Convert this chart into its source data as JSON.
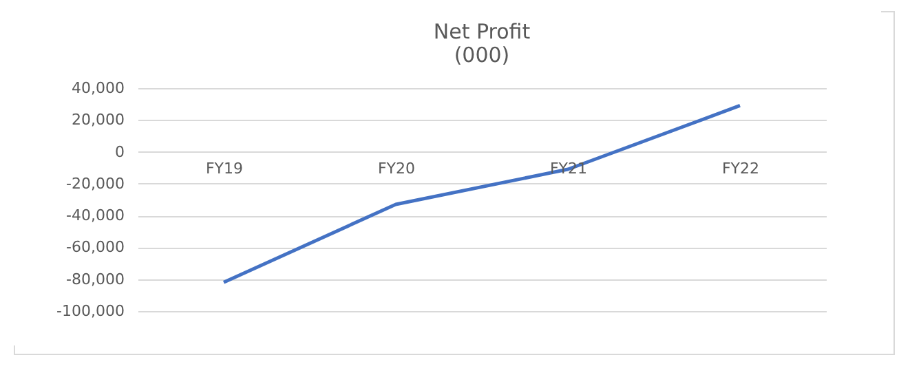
{
  "chart_data": {
    "type": "line",
    "title": "Net Profit\n(000)",
    "categories": [
      "FY19",
      "FY20",
      "FY21",
      "FY22"
    ],
    "series": [
      {
        "color": "#4472c4",
        "values": [
          -82000,
          -33000,
          -11000,
          29000
        ]
      }
    ],
    "ylim": [
      -100000,
      40000
    ],
    "yticks": [
      {
        "value": -100000,
        "label": "-100,000"
      },
      {
        "value": -80000,
        "label": "-80,000"
      },
      {
        "value": -60000,
        "label": "-60,000"
      },
      {
        "value": -40000,
        "label": "-40,000"
      },
      {
        "value": -20000,
        "label": "-20,000"
      },
      0,
      {
        "value": 20000,
        "label": "20,000"
      },
      {
        "value": 40000,
        "label": "40,000"
      }
    ],
    "grid": "y",
    "marker": "none",
    "line_style": "solid"
  }
}
